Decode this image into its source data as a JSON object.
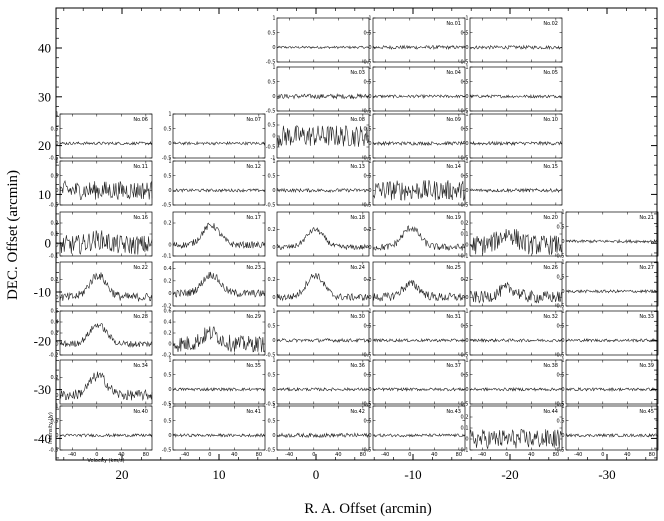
{
  "chart_data": {
    "type": "line",
    "grid_layout": {
      "rows": 9,
      "cols": 6
    },
    "xlabel": "R. A. Offset (arcmin)",
    "ylabel": "DEC. Offset (arcmin)",
    "x_ticks": [
      20,
      10,
      0,
      -10,
      -20,
      -30
    ],
    "y_ticks": [
      40,
      30,
      20,
      10,
      0,
      -10,
      -20,
      -30,
      -40
    ],
    "panel_xlabel": "Velocity (km/s)",
    "panel_ylabel": "Intensity (Jy)",
    "panel_x_ticks": [
      -40,
      0,
      40,
      80
    ],
    "panel_xlim": [
      -60,
      90
    ],
    "panels": [
      {
        "row": 0,
        "col": 2,
        "name": "",
        "ymin": -0.5,
        "ymax": 1,
        "yticks": [
          1,
          0.5,
          0,
          -0.5
        ],
        "amp": 0.04,
        "peak": 0
      },
      {
        "row": 0,
        "col": 3,
        "name": "No.01",
        "ymin": -0.5,
        "ymax": 1,
        "yticks": [
          1,
          0.5,
          0,
          -0.5
        ],
        "amp": 0.06,
        "peak": 0
      },
      {
        "row": 0,
        "col": 4,
        "name": "No.02",
        "ymin": -0.5,
        "ymax": 1,
        "yticks": [
          1,
          0.5,
          0,
          -0.5
        ],
        "amp": 0.06,
        "peak": 0
      },
      {
        "row": 1,
        "col": 2,
        "name": "No.03",
        "ymin": -0.5,
        "ymax": 1,
        "yticks": [
          1,
          0.5,
          0,
          -0.5
        ],
        "amp": 0.08,
        "peak": 0
      },
      {
        "row": 1,
        "col": 3,
        "name": "No.04",
        "ymin": -0.5,
        "ymax": 1,
        "yticks": [
          1,
          0.5,
          0,
          -0.5
        ],
        "amp": 0.05,
        "peak": 0
      },
      {
        "row": 1,
        "col": 4,
        "name": "No.05",
        "ymin": -0.5,
        "ymax": 1,
        "yticks": [
          1,
          0.5,
          0,
          -0.5
        ],
        "amp": 0.05,
        "peak": 0
      },
      {
        "row": 2,
        "col": 0,
        "name": "No.06",
        "ymin": -0.5,
        "ymax": 1,
        "yticks": [
          1,
          0.5,
          0,
          -0.5
        ],
        "amp": 0.05,
        "peak": 0
      },
      {
        "row": 2,
        "col": 1,
        "name": "No.07",
        "ymin": -0.5,
        "ymax": 1,
        "yticks": [
          1,
          0.5,
          0,
          -0.5
        ],
        "amp": 0.05,
        "peak": 0
      },
      {
        "row": 2,
        "col": 2,
        "name": "No.08",
        "ymin": -1,
        "ymax": 1,
        "yticks": [
          0.5,
          0,
          -0.5,
          -1
        ],
        "amp": 0.5,
        "peak": 0
      },
      {
        "row": 2,
        "col": 3,
        "name": "No.09",
        "ymin": -0.5,
        "ymax": 1,
        "yticks": [
          1,
          0.5,
          0,
          -0.5
        ],
        "amp": 0.06,
        "peak": 0
      },
      {
        "row": 2,
        "col": 4,
        "name": "No.10",
        "ymin": -0.5,
        "ymax": 1,
        "yticks": [
          1,
          0.5,
          0,
          -0.5
        ],
        "amp": 0.06,
        "peak": 0
      },
      {
        "row": 3,
        "col": 0,
        "name": "No.11",
        "ymin": -0.5,
        "ymax": 1,
        "yticks": [
          1,
          0.5,
          0,
          -0.5
        ],
        "amp": 0.32,
        "peak": 0
      },
      {
        "row": 3,
        "col": 1,
        "name": "No.12",
        "ymin": -0.5,
        "ymax": 1,
        "yticks": [
          1,
          0.5,
          0,
          -0.5
        ],
        "amp": 0.05,
        "peak": 0
      },
      {
        "row": 3,
        "col": 2,
        "name": "No.13",
        "ymin": -0.5,
        "ymax": 1,
        "yticks": [
          1,
          0.5,
          0,
          -0.5
        ],
        "amp": 0.06,
        "peak": 0
      },
      {
        "row": 3,
        "col": 3,
        "name": "No.14",
        "ymin": -0.5,
        "ymax": 1,
        "yticks": [
          1,
          0.5,
          0,
          -0.5
        ],
        "amp": 0.35,
        "peak": 0
      },
      {
        "row": 3,
        "col": 4,
        "name": "No.15",
        "ymin": -0.5,
        "ymax": 1,
        "yticks": [
          1,
          0.5,
          0,
          -0.5
        ],
        "amp": 0.06,
        "peak": 0
      },
      {
        "row": 4,
        "col": 0,
        "name": "No.16",
        "ymin": -0.1,
        "ymax": 0.3,
        "yticks": [
          0.2,
          0.1,
          0,
          -0.1
        ],
        "amp": 0.09,
        "peak": 0.05
      },
      {
        "row": 4,
        "col": 1,
        "name": "No.17",
        "ymin": -0.1,
        "ymax": 0.3,
        "yticks": [
          0.2,
          0,
          -0.1
        ],
        "amp": 0.03,
        "peak": 0.18
      },
      {
        "row": 4,
        "col": 2,
        "name": "No.18",
        "ymin": -0.1,
        "ymax": 0.4,
        "yticks": [
          0.2,
          0
        ],
        "amp": 0.03,
        "peak": 0.2
      },
      {
        "row": 4,
        "col": 3,
        "name": "No.19",
        "ymin": -0.1,
        "ymax": 0.4,
        "yticks": [
          0.2,
          0
        ],
        "amp": 0.04,
        "peak": 0.22
      },
      {
        "row": 4,
        "col": 4,
        "name": "No.20",
        "ymin": -0.1,
        "ymax": 0.3,
        "yticks": [
          0.2,
          0.1,
          0,
          -0.1
        ],
        "amp": 0.09,
        "peak": 0.1
      },
      {
        "row": 4,
        "col": 5,
        "name": "No.21",
        "ymin": -0.5,
        "ymax": 1,
        "yticks": [
          1,
          0.5,
          0,
          -0.5
        ],
        "amp": 0.05,
        "peak": 0
      },
      {
        "row": 5,
        "col": 0,
        "name": "No.22",
        "ymin": -0.1,
        "ymax": 0.4,
        "yticks": [
          0.2,
          0
        ],
        "amp": 0.05,
        "peak": 0.25
      },
      {
        "row": 5,
        "col": 1,
        "name": "No.23",
        "ymin": -0.2,
        "ymax": 0.5,
        "yticks": [
          0.4,
          0.2,
          0,
          -0.2
        ],
        "amp": 0.06,
        "peak": 0.3
      },
      {
        "row": 5,
        "col": 2,
        "name": "No.24",
        "ymin": -0.1,
        "ymax": 0.4,
        "yticks": [
          0.2,
          0
        ],
        "amp": 0.04,
        "peak": 0.25
      },
      {
        "row": 5,
        "col": 3,
        "name": "No.25",
        "ymin": -0.1,
        "ymax": 0.4,
        "yticks": [
          0.2,
          0
        ],
        "amp": 0.05,
        "peak": 0.15
      },
      {
        "row": 5,
        "col": 4,
        "name": "No.26",
        "ymin": -0.1,
        "ymax": 0.4,
        "yticks": [
          0.2,
          0
        ],
        "amp": 0.07,
        "peak": 0.1
      },
      {
        "row": 5,
        "col": 5,
        "name": "No.27",
        "ymin": -0.5,
        "ymax": 1,
        "yticks": [
          1,
          0.5,
          0,
          -0.5
        ],
        "amp": 0.05,
        "peak": 0
      },
      {
        "row": 6,
        "col": 0,
        "name": "No.28",
        "ymin": -0.2,
        "ymax": 0.6,
        "yticks": [
          0.6,
          0.4,
          0.2,
          0,
          -0.2
        ],
        "amp": 0.06,
        "peak": 0.35
      },
      {
        "row": 6,
        "col": 1,
        "name": "No.29",
        "ymin": -0.2,
        "ymax": 0.6,
        "yticks": [
          0.6,
          0.4,
          0.2,
          0,
          -0.2
        ],
        "amp": 0.15,
        "peak": 0.2
      },
      {
        "row": 6,
        "col": 2,
        "name": "No.30",
        "ymin": -0.5,
        "ymax": 1,
        "yticks": [
          1,
          0.5,
          0,
          -0.5
        ],
        "amp": 0.06,
        "peak": 0
      },
      {
        "row": 6,
        "col": 3,
        "name": "No.31",
        "ymin": -0.5,
        "ymax": 1,
        "yticks": [
          1,
          0.5,
          0,
          -0.5
        ],
        "amp": 0.05,
        "peak": 0
      },
      {
        "row": 6,
        "col": 4,
        "name": "No.32",
        "ymin": -0.5,
        "ymax": 1,
        "yticks": [
          1,
          0.5,
          0,
          -0.5
        ],
        "amp": 0.05,
        "peak": 0
      },
      {
        "row": 6,
        "col": 5,
        "name": "No.33",
        "ymin": -0.5,
        "ymax": 1,
        "yticks": [
          1,
          0.5,
          0,
          -0.5
        ],
        "amp": 0.05,
        "peak": 0
      },
      {
        "row": 7,
        "col": 0,
        "name": "No.34",
        "ymin": -0.1,
        "ymax": 0.4,
        "yticks": [
          0.2,
          0
        ],
        "amp": 0.06,
        "peak": 0.22
      },
      {
        "row": 7,
        "col": 1,
        "name": "No.35",
        "ymin": -0.5,
        "ymax": 1,
        "yticks": [
          1,
          0.5,
          0,
          -0.5
        ],
        "amp": 0.05,
        "peak": 0
      },
      {
        "row": 7,
        "col": 2,
        "name": "No.36",
        "ymin": -0.5,
        "ymax": 1,
        "yticks": [
          1,
          0.5,
          0,
          -0.5
        ],
        "amp": 0.05,
        "peak": 0
      },
      {
        "row": 7,
        "col": 3,
        "name": "No.37",
        "ymin": -0.5,
        "ymax": 1,
        "yticks": [
          1,
          0.5,
          0,
          -0.5
        ],
        "amp": 0.05,
        "peak": 0
      },
      {
        "row": 7,
        "col": 4,
        "name": "No.38",
        "ymin": -0.5,
        "ymax": 1,
        "yticks": [
          1,
          0.5,
          0,
          -0.5
        ],
        "amp": 0.05,
        "peak": 0
      },
      {
        "row": 7,
        "col": 5,
        "name": "No.39",
        "ymin": -0.5,
        "ymax": 1,
        "yticks": [
          1,
          0.5,
          0,
          -0.5
        ],
        "amp": 0.05,
        "peak": 0
      },
      {
        "row": 8,
        "col": 0,
        "name": "No.40",
        "ymin": -0.5,
        "ymax": 1,
        "yticks": [
          1,
          0.5,
          0,
          -0.5
        ],
        "amp": 0.05,
        "peak": 0
      },
      {
        "row": 8,
        "col": 1,
        "name": "No.41",
        "ymin": -0.5,
        "ymax": 1,
        "yticks": [
          1,
          0.5,
          0,
          -0.5
        ],
        "amp": 0.05,
        "peak": 0
      },
      {
        "row": 8,
        "col": 2,
        "name": "No.42",
        "ymin": -0.5,
        "ymax": 1,
        "yticks": [
          1,
          0.5,
          0,
          -0.5
        ],
        "amp": 0.07,
        "peak": 0
      },
      {
        "row": 8,
        "col": 3,
        "name": "No.43",
        "ymin": -0.5,
        "ymax": 1,
        "yticks": [
          1,
          0.5,
          0,
          -0.5
        ],
        "amp": 0.05,
        "peak": 0
      },
      {
        "row": 8,
        "col": 4,
        "name": "No.44",
        "ymin": -0.1,
        "ymax": 0.3,
        "yticks": [
          0.2,
          0.1,
          0,
          -0.1
        ],
        "amp": 0.09,
        "peak": 0
      },
      {
        "row": 8,
        "col": 5,
        "name": "No.45",
        "ymin": -0.5,
        "ymax": 1,
        "yticks": [
          1,
          0.5,
          0,
          -0.5
        ],
        "amp": 0.05,
        "peak": 0
      }
    ]
  }
}
